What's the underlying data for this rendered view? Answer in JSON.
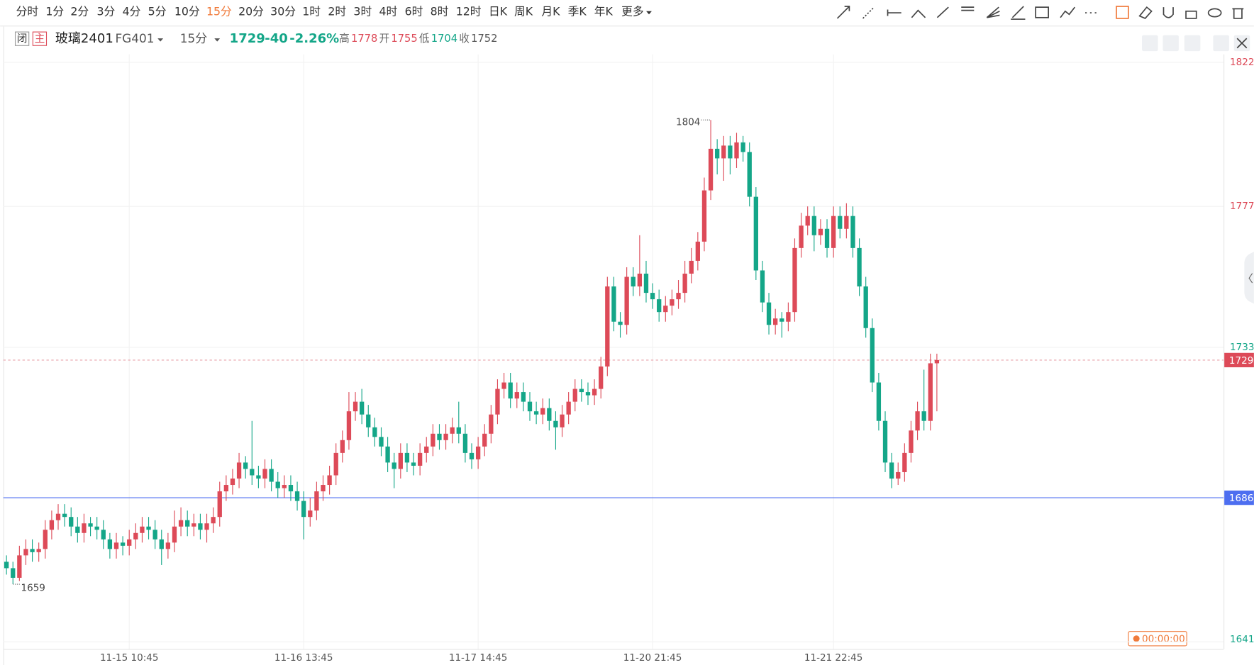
{
  "toolbar": {
    "periods": [
      "分时",
      "1分",
      "2分",
      "3分",
      "4分",
      "5分",
      "10分",
      "15分",
      "20分",
      "30分",
      "1时",
      "2时",
      "3时",
      "4时",
      "6时",
      "8时",
      "12时",
      "日K",
      "周K",
      "月K",
      "季K",
      "年K",
      "更多"
    ],
    "active": 7
  },
  "header": {
    "status": "闭",
    "main": "主",
    "name": "玻璃2401",
    "code": "FG401",
    "period": "15分",
    "price": 1729,
    "change": -40,
    "change_pct": "-2.26%",
    "stats": [
      {
        "label": "高",
        "value": 1778,
        "color": "#dd4a58"
      },
      {
        "label": "开",
        "value": 1755,
        "color": "#dd4a58"
      },
      {
        "label": "低",
        "value": 1704,
        "color": "#14a688"
      },
      {
        "label": "收",
        "value": 1752,
        "color": "#555555"
      }
    ]
  },
  "timer": "00:00:00",
  "chart_data": {
    "type": "candlestick",
    "up_color": "#dd4a58",
    "down_color": "#14a688",
    "ylim": [
      1641,
      1822
    ],
    "yticks": [
      1822,
      1777,
      1733,
      1641
    ],
    "ytick_colors": [
      "#dd4a58",
      "#dd4a58",
      "#14a688",
      "#14a688"
    ],
    "hline": {
      "value": 1686,
      "color": "#4d6ef0"
    },
    "categories": [
      null,
      null,
      null,
      null,
      null,
      null,
      null,
      null,
      null,
      null,
      null,
      null,
      null,
      null,
      null,
      null,
      null,
      null,
      null,
      "11-15 10:45",
      null,
      null,
      null,
      null,
      null,
      null,
      null,
      null,
      null,
      null,
      null,
      null,
      null,
      null,
      null,
      null,
      null,
      null,
      null,
      null,
      null,
      null,
      null,
      null,
      null,
      null,
      "11-16 13:45",
      null,
      null,
      null,
      null,
      null,
      null,
      null,
      null,
      null,
      null,
      null,
      null,
      null,
      null,
      null,
      null,
      null,
      null,
      null,
      null,
      null,
      null,
      null,
      null,
      null,
      null,
      "11-17 14:45",
      null,
      null,
      null,
      null,
      null,
      null,
      null,
      null,
      null,
      null,
      null,
      null,
      null,
      null,
      null,
      null,
      null,
      null,
      null,
      null,
      null,
      null,
      null,
      null,
      null,
      null,
      "11-20 21:45",
      null,
      null,
      null,
      null,
      null,
      null,
      null,
      null,
      null,
      null,
      null,
      null,
      null,
      null,
      null,
      null,
      null,
      null,
      null,
      null,
      null,
      null,
      null,
      null,
      null,
      null,
      null,
      "11-21 22:45",
      null,
      null,
      null,
      null,
      null,
      null,
      null,
      null,
      null,
      null,
      null,
      null,
      null,
      null,
      null,
      null
    ],
    "open": [
      1666,
      1664,
      1661,
      1668,
      1670,
      1669,
      1670,
      1676,
      1679,
      1681,
      1680,
      1677,
      1675,
      1678,
      1677,
      1676,
      1673,
      1670,
      1672,
      1671,
      1673,
      1675,
      1677,
      1676,
      1673,
      1670,
      1672,
      1677,
      1679,
      1677,
      1678,
      1676,
      1678,
      1680,
      1688,
      1690,
      1692,
      1697,
      1695,
      1693,
      1692,
      1695,
      1691,
      1689,
      1690,
      1688,
      1685,
      1680,
      1682,
      1688,
      1690,
      1693,
      1700,
      1704,
      1713,
      1716,
      1712,
      1708,
      1705,
      1702,
      1697,
      1695,
      1700,
      1697,
      1696,
      1700,
      1702,
      1706,
      1704,
      1706,
      1708,
      1706,
      1700,
      1698,
      1702,
      1706,
      1712,
      1720,
      1722,
      1717,
      1719,
      1716,
      1713,
      1712,
      1714,
      1710,
      1708,
      1712,
      1716,
      1720,
      1719,
      1718,
      1720,
      1727,
      1752,
      1741,
      1740,
      1755,
      1752,
      1756,
      1750,
      1748,
      1744,
      1746,
      1748,
      1750,
      1756,
      1760,
      1766,
      1782,
      1795,
      1792,
      1796,
      1792,
      1797,
      1794,
      1780,
      1757,
      1747,
      1740,
      1742,
      1741,
      1744,
      1764,
      1771,
      1774,
      1768,
      1770,
      1764,
      1774,
      1770,
      1774,
      1764,
      1752,
      1739,
      1722,
      1710,
      1697,
      1692,
      1694,
      1700,
      1707,
      1713,
      1710,
      1728
    ],
    "high": [
      1668,
      1666,
      1671,
      1673,
      1673,
      1672,
      1679,
      1682,
      1684,
      1684,
      1683,
      1680,
      1681,
      1680,
      1680,
      1679,
      1675,
      1675,
      1674,
      1676,
      1678,
      1680,
      1680,
      1679,
      1676,
      1675,
      1682,
      1683,
      1682,
      1681,
      1681,
      1681,
      1683,
      1691,
      1693,
      1695,
      1700,
      1699,
      1710,
      1696,
      1698,
      1698,
      1694,
      1693,
      1693,
      1691,
      1688,
      1686,
      1691,
      1693,
      1696,
      1703,
      1707,
      1719,
      1719,
      1720,
      1715,
      1711,
      1708,
      1705,
      1700,
      1703,
      1703,
      1700,
      1703,
      1705,
      1709,
      1709,
      1709,
      1711,
      1716,
      1709,
      1703,
      1705,
      1709,
      1715,
      1723,
      1725,
      1725,
      1722,
      1722,
      1719,
      1716,
      1717,
      1717,
      1713,
      1715,
      1719,
      1723,
      1723,
      1722,
      1723,
      1730,
      1755,
      1755,
      1744,
      1758,
      1758,
      1768,
      1760,
      1753,
      1751,
      1749,
      1751,
      1754,
      1760,
      1764,
      1769,
      1786,
      1804,
      1798,
      1799,
      1799,
      1800,
      1799,
      1797,
      1783,
      1760,
      1750,
      1745,
      1744,
      1747,
      1767,
      1775,
      1777,
      1777,
      1773,
      1773,
      1777,
      1777,
      1778,
      1777,
      1767,
      1755,
      1742,
      1725,
      1713,
      1700,
      1697,
      1703,
      1710,
      1716,
      1726,
      1731,
      1731
    ],
    "low": [
      1662,
      1659,
      1660,
      1665,
      1666,
      1666,
      1667,
      1673,
      1676,
      1677,
      1674,
      1672,
      1672,
      1674,
      1673,
      1670,
      1667,
      1667,
      1668,
      1668,
      1670,
      1672,
      1673,
      1670,
      1665,
      1667,
      1669,
      1674,
      1674,
      1674,
      1673,
      1672,
      1675,
      1677,
      1685,
      1687,
      1689,
      1692,
      1690,
      1689,
      1689,
      1688,
      1686,
      1686,
      1685,
      1682,
      1673,
      1677,
      1679,
      1685,
      1687,
      1690,
      1697,
      1701,
      1710,
      1709,
      1705,
      1702,
      1699,
      1694,
      1689,
      1692,
      1694,
      1693,
      1693,
      1697,
      1699,
      1701,
      1701,
      1703,
      1703,
      1697,
      1695,
      1695,
      1699,
      1703,
      1709,
      1717,
      1714,
      1714,
      1713,
      1710,
      1709,
      1709,
      1707,
      1701,
      1705,
      1709,
      1713,
      1716,
      1715,
      1715,
      1717,
      1724,
      1738,
      1736,
      1737,
      1749,
      1749,
      1747,
      1745,
      1741,
      1741,
      1743,
      1745,
      1747,
      1753,
      1757,
      1763,
      1779,
      1787,
      1785,
      1787,
      1789,
      1791,
      1777,
      1754,
      1744,
      1737,
      1737,
      1736,
      1738,
      1741,
      1761,
      1768,
      1763,
      1765,
      1761,
      1761,
      1767,
      1767,
      1761,
      1749,
      1736,
      1719,
      1707,
      1694,
      1689,
      1690,
      1691,
      1697,
      1704,
      1707,
      1707,
      1713
    ],
    "close": [
      1664,
      1661,
      1668,
      1670,
      1669,
      1670,
      1676,
      1679,
      1681,
      1680,
      1677,
      1675,
      1678,
      1677,
      1676,
      1673,
      1670,
      1672,
      1671,
      1673,
      1675,
      1677,
      1676,
      1673,
      1670,
      1672,
      1677,
      1679,
      1677,
      1678,
      1676,
      1678,
      1680,
      1688,
      1690,
      1692,
      1697,
      1695,
      1693,
      1692,
      1695,
      1691,
      1689,
      1690,
      1688,
      1685,
      1680,
      1682,
      1688,
      1690,
      1693,
      1700,
      1704,
      1713,
      1716,
      1712,
      1708,
      1705,
      1702,
      1697,
      1695,
      1700,
      1697,
      1696,
      1700,
      1702,
      1706,
      1704,
      1706,
      1708,
      1706,
      1700,
      1698,
      1702,
      1706,
      1712,
      1720,
      1722,
      1717,
      1719,
      1716,
      1713,
      1712,
      1714,
      1710,
      1708,
      1712,
      1716,
      1720,
      1719,
      1718,
      1720,
      1727,
      1752,
      1741,
      1740,
      1755,
      1752,
      1756,
      1750,
      1748,
      1744,
      1746,
      1748,
      1750,
      1756,
      1760,
      1766,
      1782,
      1795,
      1792,
      1796,
      1792,
      1797,
      1794,
      1780,
      1757,
      1747,
      1740,
      1742,
      1741,
      1744,
      1764,
      1771,
      1774,
      1768,
      1770,
      1764,
      1774,
      1770,
      1774,
      1764,
      1752,
      1739,
      1722,
      1710,
      1697,
      1692,
      1694,
      1700,
      1707,
      1713,
      1710,
      1728,
      1729
    ]
  }
}
